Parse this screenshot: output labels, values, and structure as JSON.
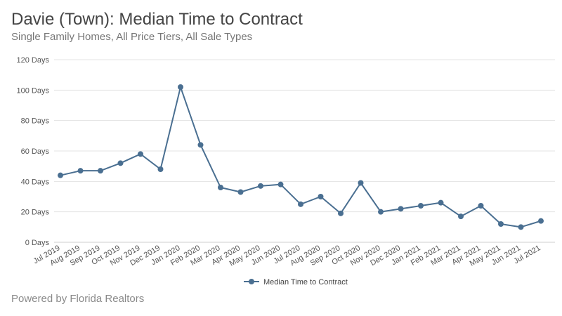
{
  "header": {
    "title": "Davie (Town): Median Time to Contract",
    "subtitle": "Single Family Homes, All Price Tiers, All Sale Types"
  },
  "footer": {
    "text": "Powered by Florida Realtors"
  },
  "chart_data": {
    "type": "line",
    "categories": [
      "Jul 2019",
      "Aug 2019",
      "Sep 2019",
      "Oct 2019",
      "Nov 2019",
      "Dec 2019",
      "Jan 2020",
      "Feb 2020",
      "Mar 2020",
      "Apr 2020",
      "May 2020",
      "Jun 2020",
      "Jul 2020",
      "Aug 2020",
      "Sep 2020",
      "Oct 2020",
      "Nov 2020",
      "Dec 2020",
      "Jan 2021",
      "Feb 2021",
      "Mar 2021",
      "Apr 2021",
      "May 2021",
      "Jun 2021",
      "Jul 2021"
    ],
    "series": [
      {
        "name": "Median Time to Contract",
        "values": [
          44,
          47,
          47,
          52,
          58,
          48,
          102,
          64,
          36,
          33,
          37,
          38,
          25,
          30,
          19,
          39,
          20,
          22,
          24,
          26,
          17,
          24,
          12,
          10,
          14
        ]
      }
    ],
    "y_ticks": [
      0,
      20,
      40,
      60,
      80,
      100,
      120
    ],
    "y_tick_labels": [
      "0 Days",
      "20 Days",
      "40 Days",
      "60 Days",
      "80 Days",
      "100 Days",
      "120 Days"
    ],
    "ylim": [
      0,
      120
    ],
    "grid": true,
    "legend_position": "bottom",
    "line_color": "#4a6f91",
    "xlabel": "",
    "ylabel": ""
  }
}
